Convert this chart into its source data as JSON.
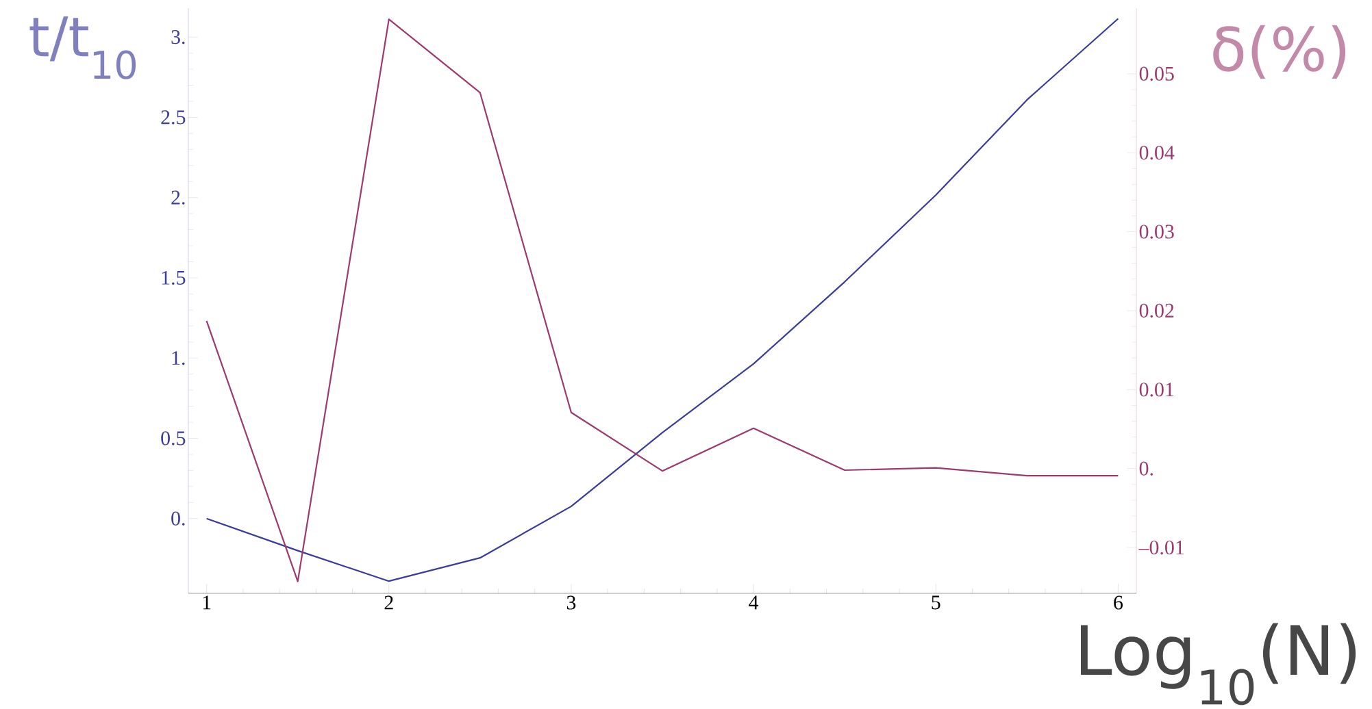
{
  "chart_data": {
    "type": "line",
    "xlabel": "Log$_{10}$(N)",
    "ylabel": "t/t$_{10}$",
    "y2label": "δ(%)",
    "x": [
      1,
      1.5,
      2,
      2.5,
      3,
      3.5,
      4,
      4.5,
      5,
      5.5,
      6
    ],
    "xlim": [
      0.9,
      6.1
    ],
    "xticks": [
      1,
      2,
      3,
      4,
      5,
      6
    ],
    "ylim": [
      -0.466,
      3.18
    ],
    "yticks": [
      {
        "value": 0,
        "label": "0."
      },
      0.5,
      {
        "value": 1,
        "label": "1."
      },
      1.5,
      {
        "value": 2,
        "label": "2."
      },
      2.5,
      {
        "value": 3,
        "label": "3."
      }
    ],
    "y2lim": [
      -0.0158,
      0.0583
    ],
    "y2ticks": [
      {
        "value": -0.01,
        "label": "–0.01"
      },
      {
        "value": 0,
        "label": "0."
      },
      0.01,
      0.02,
      0.03,
      0.04,
      0.05
    ],
    "marker": "none",
    "line_style": "solid",
    "series": [
      {
        "color": "#3b3b9b",
        "values": [
          0,
          -0.2,
          -0.39,
          -0.245,
          0.076,
          0.536,
          0.964,
          1.475,
          2.016,
          2.609,
          3.115
        ]
      },
      {
        "color": "#9b3a6e",
        "axis": "y2",
        "values": [
          0.0187,
          -0.0143,
          0.0569,
          0.0476,
          0.0071,
          -0.0003,
          0.0051,
          -0.0002,
          0.0001,
          -0.0009,
          -0.0009
        ]
      }
    ]
  }
}
